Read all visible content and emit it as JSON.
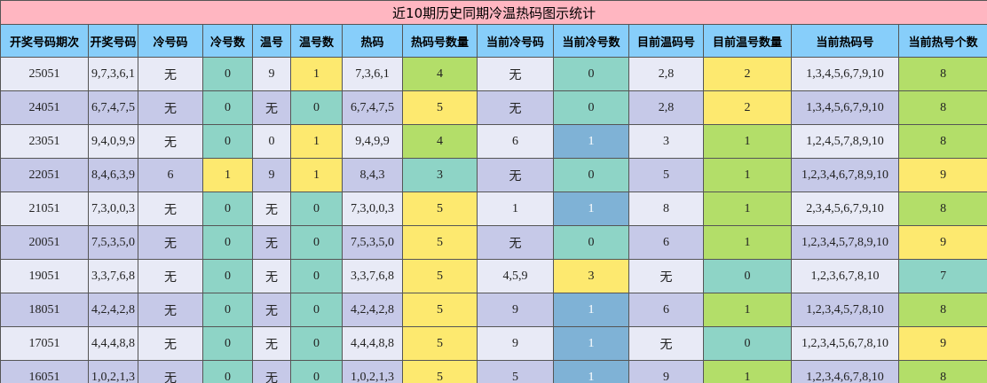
{
  "table": {
    "title": "近10期历史同期冷温热码图示统计",
    "columns": [
      "开奖号码期次",
      "开奖号码",
      "冷号码",
      "冷号数",
      "温号",
      "温号数",
      "热码",
      "热码号数量",
      "当前冷号码",
      "当前冷号数",
      "目前温码号",
      "目前温号数量",
      "当前热码号",
      "当前热号个数"
    ],
    "rows": [
      [
        "25051",
        "9,7,3,6,1",
        "无",
        "0",
        "9",
        "1",
        "7,3,6,1",
        "4",
        "无",
        "0",
        "2,8",
        "2",
        "1,3,4,5,6,7,9,10",
        "8"
      ],
      [
        "24051",
        "6,7,4,7,5",
        "无",
        "0",
        "无",
        "0",
        "6,7,4,7,5",
        "5",
        "无",
        "0",
        "2,8",
        "2",
        "1,3,4,5,6,7,9,10",
        "8"
      ],
      [
        "23051",
        "9,4,0,9,9",
        "无",
        "0",
        "0",
        "1",
        "9,4,9,9",
        "4",
        "6",
        "1",
        "3",
        "1",
        "1,2,4,5,7,8,9,10",
        "8"
      ],
      [
        "22051",
        "8,4,6,3,9",
        "6",
        "1",
        "9",
        "1",
        "8,4,3",
        "3",
        "无",
        "0",
        "5",
        "1",
        "1,2,3,4,6,7,8,9,10",
        "9"
      ],
      [
        "21051",
        "7,3,0,0,3",
        "无",
        "0",
        "无",
        "0",
        "7,3,0,0,3",
        "5",
        "1",
        "1",
        "8",
        "1",
        "2,3,4,5,6,7,9,10",
        "8"
      ],
      [
        "20051",
        "7,5,3,5,0",
        "无",
        "0",
        "无",
        "0",
        "7,5,3,5,0",
        "5",
        "无",
        "0",
        "6",
        "1",
        "1,2,3,4,5,7,8,9,10",
        "9"
      ],
      [
        "19051",
        "3,3,7,6,8",
        "无",
        "0",
        "无",
        "0",
        "3,3,7,6,8",
        "5",
        "4,5,9",
        "3",
        "无",
        "0",
        "1,2,3,6,7,8,10",
        "7"
      ],
      [
        "18051",
        "4,2,4,2,8",
        "无",
        "0",
        "无",
        "0",
        "4,2,4,2,8",
        "5",
        "9",
        "1",
        "6",
        "1",
        "1,2,3,4,5,7,8,10",
        "8"
      ],
      [
        "17051",
        "4,4,4,8,8",
        "无",
        "0",
        "无",
        "0",
        "4,4,4,8,8",
        "5",
        "9",
        "1",
        "无",
        "0",
        "1,2,3,4,5,6,7,8,10",
        "9"
      ],
      [
        "16051",
        "1,0,2,1,3",
        "无",
        "0",
        "无",
        "0",
        "1,0,2,1,3",
        "5",
        "5",
        "1",
        "9",
        "1",
        "1,2,3,4,6,7,8,10",
        "8"
      ]
    ],
    "cell_colors": [
      [
        "#e8eaf6",
        "#e8eaf6",
        "#e8eaf6",
        "#8ed4c6",
        "#e8eaf6",
        "#fde96f",
        "#e8eaf6",
        "#b3de69",
        "#e8eaf6",
        "#8ed4c6",
        "#e8eaf6",
        "#fde96f",
        "#e8eaf6",
        "#b3de69"
      ],
      [
        "#c6c9e8",
        "#c6c9e8",
        "#c6c9e8",
        "#8ed4c6",
        "#c6c9e8",
        "#8ed4c6",
        "#c6c9e8",
        "#fde96f",
        "#c6c9e8",
        "#8ed4c6",
        "#c6c9e8",
        "#fde96f",
        "#c6c9e8",
        "#b3de69"
      ],
      [
        "#e8eaf6",
        "#e8eaf6",
        "#e8eaf6",
        "#8ed4c6",
        "#e8eaf6",
        "#fde96f",
        "#e8eaf6",
        "#b3de69",
        "#e8eaf6",
        "#7fb2d6",
        "#e8eaf6",
        "#b3de69",
        "#e8eaf6",
        "#b3de69"
      ],
      [
        "#c6c9e8",
        "#c6c9e8",
        "#c6c9e8",
        "#fde96f",
        "#c6c9e8",
        "#fde96f",
        "#c6c9e8",
        "#8ed4c6",
        "#c6c9e8",
        "#8ed4c6",
        "#c6c9e8",
        "#b3de69",
        "#c6c9e8",
        "#fde96f"
      ],
      [
        "#e8eaf6",
        "#e8eaf6",
        "#e8eaf6",
        "#8ed4c6",
        "#e8eaf6",
        "#8ed4c6",
        "#e8eaf6",
        "#fde96f",
        "#e8eaf6",
        "#7fb2d6",
        "#e8eaf6",
        "#b3de69",
        "#e8eaf6",
        "#b3de69"
      ],
      [
        "#c6c9e8",
        "#c6c9e8",
        "#c6c9e8",
        "#8ed4c6",
        "#c6c9e8",
        "#8ed4c6",
        "#c6c9e8",
        "#fde96f",
        "#c6c9e8",
        "#8ed4c6",
        "#c6c9e8",
        "#b3de69",
        "#c6c9e8",
        "#fde96f"
      ],
      [
        "#e8eaf6",
        "#e8eaf6",
        "#e8eaf6",
        "#8ed4c6",
        "#e8eaf6",
        "#8ed4c6",
        "#e8eaf6",
        "#fde96f",
        "#e8eaf6",
        "#fde96f",
        "#e8eaf6",
        "#8ed4c6",
        "#e8eaf6",
        "#8ed4c6"
      ],
      [
        "#c6c9e8",
        "#c6c9e8",
        "#c6c9e8",
        "#8ed4c6",
        "#c6c9e8",
        "#8ed4c6",
        "#c6c9e8",
        "#fde96f",
        "#c6c9e8",
        "#7fb2d6",
        "#c6c9e8",
        "#b3de69",
        "#c6c9e8",
        "#b3de69"
      ],
      [
        "#e8eaf6",
        "#e8eaf6",
        "#e8eaf6",
        "#8ed4c6",
        "#e8eaf6",
        "#8ed4c6",
        "#e8eaf6",
        "#fde96f",
        "#e8eaf6",
        "#7fb2d6",
        "#e8eaf6",
        "#8ed4c6",
        "#e8eaf6",
        "#fde96f"
      ],
      [
        "#c6c9e8",
        "#c6c9e8",
        "#c6c9e8",
        "#8ed4c6",
        "#c6c9e8",
        "#8ed4c6",
        "#c6c9e8",
        "#fde96f",
        "#c6c9e8",
        "#7fb2d6",
        "#c6c9e8",
        "#b3de69",
        "#c6c9e8",
        "#b3de69"
      ]
    ]
  }
}
